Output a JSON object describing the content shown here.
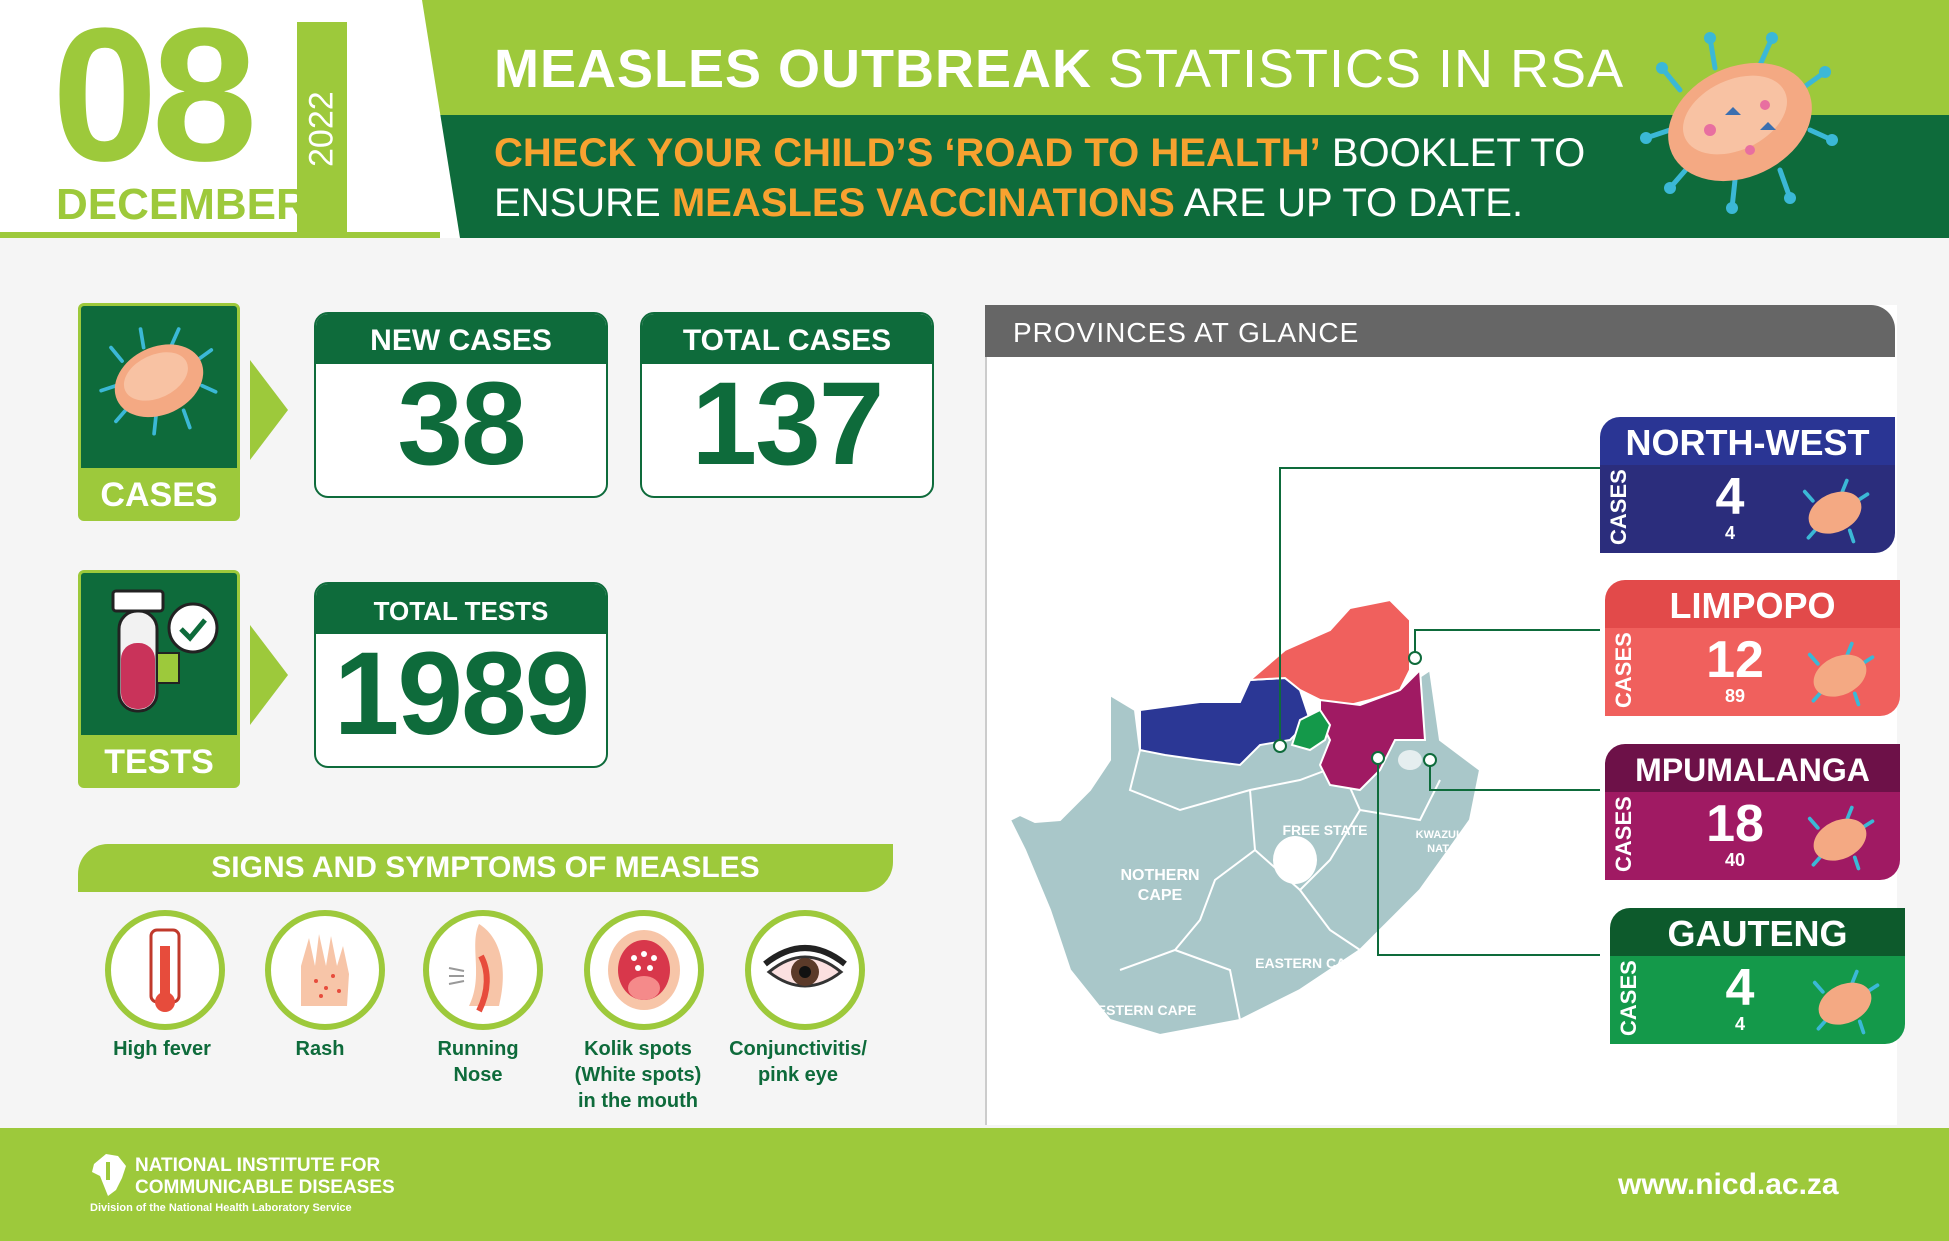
{
  "header": {
    "day": "08",
    "month": "DECEMBER",
    "year": "2022",
    "title_bold": "MEASLES OUTBREAK",
    "title_rest": " STATISTICS IN RSA",
    "sub_1_orange": "CHECK YOUR CHILD’S ‘ROAD TO HEALTH’",
    "sub_1_white": " BOOKLET TO",
    "sub_2_white_a": "ENSURE ",
    "sub_2_orange": "MEASLES VACCINATIONS",
    "sub_2_white_b": " ARE UP TO DATE."
  },
  "stats": {
    "cases_label": "CASES",
    "tests_label": "TESTS",
    "new_cases_label": "NEW CASES",
    "new_cases_value": "38",
    "total_cases_label": "TOTAL CASES",
    "total_cases_value": "137",
    "total_tests_label": "TOTAL TESTS",
    "total_tests_value": "1989"
  },
  "symptoms": {
    "heading": "SIGNS AND SYMPTOMS OF MEASLES",
    "items": [
      {
        "label_1": "High fever",
        "label_2": "",
        "label_3": ""
      },
      {
        "label_1": "Rash",
        "label_2": "",
        "label_3": ""
      },
      {
        "label_1": "Running",
        "label_2": "Nose",
        "label_3": ""
      },
      {
        "label_1": "Kolik spots",
        "label_2": "(White spots)",
        "label_3": "in the mouth"
      },
      {
        "label_1": "Conjunctivitis/",
        "label_2": "pink eye",
        "label_3": ""
      }
    ]
  },
  "provinces": {
    "heading": "PROVINCES AT GLANCE",
    "cases_word": "CASES",
    "cards": [
      {
        "name": "NORTH-WEST",
        "new": "4",
        "total": "4",
        "color": "#2b2d7c",
        "head_color": "#2a3594"
      },
      {
        "name": "LIMPOPO",
        "new": "12",
        "total": "89",
        "color": "#f0605d",
        "head_color": "#e24a4a"
      },
      {
        "name": "MPUMALANGA",
        "new": "18",
        "total": "40",
        "color": "#a01a63",
        "head_color": "#6d1148"
      },
      {
        "name": "GAUTENG",
        "new": "4",
        "total": "4",
        "color": "#14994a",
        "head_color": "#0d5a2c"
      }
    ],
    "map_labels": {
      "free_state": "FREE STATE",
      "kzn_1": "KWAZULU-",
      "kzn_2": "NATAL",
      "northern_cape_1": "NOTHERN",
      "northern_cape_2": "CAPE",
      "eastern_cape": "EASTERN CAPE",
      "western_cape": "WESTERN CAPE"
    }
  },
  "footer": {
    "org_1": "NATIONAL INSTITUTE FOR",
    "org_2": "COMMUNICABLE DISEASES",
    "org_sub": "Division of the National Health Laboratory Service",
    "url": "www.nicd.ac.za"
  },
  "colors": {
    "lime": "#9dc93b",
    "dark_green": "#0e6b3b",
    "orange": "#f7a230"
  }
}
